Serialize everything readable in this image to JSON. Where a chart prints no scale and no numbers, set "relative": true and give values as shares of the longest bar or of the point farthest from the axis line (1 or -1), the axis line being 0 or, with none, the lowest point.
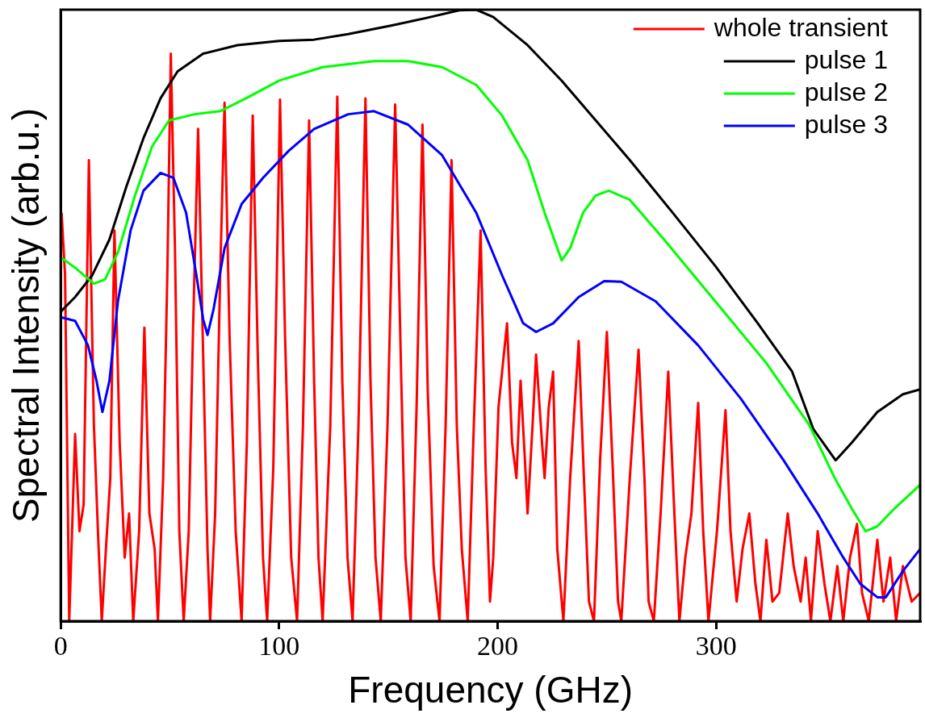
{
  "chart_data": {
    "type": "line",
    "xlabel": "Frequency (GHz)",
    "ylabel": "Spectral Intensity (arb.u.)",
    "relative": true,
    "xlim": [
      0,
      393.4
    ],
    "xticks": [
      0,
      100,
      200,
      300
    ],
    "legend": "top right",
    "grid": false,
    "series": [
      {
        "name": "whole transient",
        "color": "#ff0000",
        "x": [
          0.4,
          2.0,
          3.9,
          6.6,
          8.6,
          10.5,
          12.9,
          15.2,
          17.2,
          18.8,
          20.7,
          22.7,
          24.6,
          27,
          29.3,
          31.3,
          33.2,
          35.9,
          38.3,
          40.6,
          43,
          44.5,
          46.9,
          48.8,
          50.4,
          52.3,
          54.3,
          56.3,
          58.6,
          60.5,
          62.9,
          65.2,
          67.2,
          68.4,
          70.7,
          73,
          75,
          77.3,
          80.1,
          82.8,
          85.2,
          87.9,
          90.2,
          92.6,
          94.5,
          97.3,
          100.4,
          102.7,
          105.5,
          108.2,
          110.9,
          113.7,
          116,
          118,
          119.9,
          123.4,
          126.6,
          128.9,
          131.3,
          133.6,
          136.3,
          139.5,
          141.8,
          144.1,
          146.5,
          149.6,
          153.1,
          155.9,
          157.8,
          160.2,
          162.9,
          165.6,
          168,
          170.7,
          173.4,
          176.2,
          178.9,
          181.3,
          183.6,
          186.3,
          189.1,
          192.2,
          194.5,
          196.5,
          198,
          200.4,
          204.3,
          206.6,
          208.6,
          210.5,
          212.5,
          213.7,
          216,
          217.6,
          220.3,
          221.5,
          223.4,
          225.4,
          227.3,
          230.1,
          233.2,
          237.1,
          239.5,
          241.8,
          244.1,
          246.9,
          250,
          252.7,
          255.1,
          256.6,
          260.5,
          264.5,
          267.2,
          269.1,
          271.5,
          274.6,
          278.1,
          280.9,
          283.2,
          285.9,
          288.7,
          291.8,
          294.1,
          296.5,
          300.4,
          304.3,
          306.6,
          309.4,
          312.1,
          315.2,
          318,
          320.3,
          323,
          325.8,
          328.9,
          332.8,
          335.5,
          338.7,
          341,
          343.4,
          346.5,
          349.6,
          352.3,
          355.5,
          358.2,
          361.3,
          364.5,
          366.8,
          369.9,
          373.8,
          376.6,
          379.7,
          382.4,
          385.5,
          389.5,
          393.4
        ],
        "values": [
          0.668,
          0.566,
          0,
          0.306,
          0.147,
          0.191,
          0.754,
          0.321,
          0.133,
          0,
          0.118,
          0.234,
          0.639,
          0.292,
          0.104,
          0.176,
          0,
          0.147,
          0.48,
          0.176,
          0.118,
          0,
          0.234,
          0.566,
          0.928,
          0.61,
          0.147,
          0,
          0.147,
          0.465,
          0.805,
          0.436,
          0.118,
          0,
          0.176,
          0.566,
          0.848,
          0.465,
          0.147,
          0,
          0.292,
          0.827,
          0.436,
          0.104,
          0,
          0.249,
          0.853,
          0.465,
          0.104,
          0,
          0.321,
          0.819,
          0.393,
          0.104,
          0,
          0.321,
          0.858,
          0.393,
          0.104,
          0,
          0.321,
          0.855,
          0.393,
          0.104,
          0,
          0.321,
          0.845,
          0.393,
          0.104,
          0,
          0.35,
          0.812,
          0.379,
          0.09,
          0,
          0.321,
          0.754,
          0.321,
          0.118,
          0,
          0.321,
          0.639,
          0.249,
          0.032,
          0.104,
          0.35,
          0.487,
          0.292,
          0.234,
          0.393,
          0.263,
          0.176,
          0.321,
          0.436,
          0.292,
          0.234,
          0.35,
          0.408,
          0.118,
          0,
          0.234,
          0.458,
          0.234,
          0.032,
          0,
          0.263,
          0.473,
          0.249,
          0.032,
          0,
          0.234,
          0.444,
          0.234,
          0.032,
          0,
          0.176,
          0.408,
          0.176,
          0,
          0.104,
          0.176,
          0.357,
          0.147,
          0,
          0.147,
          0.345,
          0.147,
          0.032,
          0.118,
          0.176,
          0.061,
          0,
          0.133,
          0.032,
          0.046,
          0.176,
          0.09,
          0.032,
          0.104,
          0,
          0.147,
          0.061,
          0,
          0.09,
          0,
          0.104,
          0.159,
          0.046,
          0,
          0.133,
          0.032,
          0.104,
          0,
          0.09,
          0.032,
          0.046
        ]
      },
      {
        "name": "pulse 1",
        "color": "#000000",
        "x": [
          0,
          6.6,
          14.5,
          22.3,
          30.1,
          37.9,
          45.7,
          53.5,
          65.2,
          80.9,
          100,
          116,
          131.6,
          151.2,
          166.8,
          182.4,
          190.2,
          198,
          213.7,
          229.3,
          244.9,
          260.5,
          280.1,
          299.6,
          319.1,
          334.8,
          344.5,
          354.7,
          362.1,
          373.8,
          385.5,
          393.4
        ],
        "values": [
          0.506,
          0.53,
          0.566,
          0.624,
          0.711,
          0.79,
          0.855,
          0.899,
          0.928,
          0.942,
          0.949,
          0.951,
          0.96,
          0.974,
          0.986,
          0.999,
          1,
          0.988,
          0.942,
          0.884,
          0.819,
          0.754,
          0.668,
          0.581,
          0.487,
          0.408,
          0.314,
          0.263,
          0.292,
          0.342,
          0.371,
          0.379
        ]
      },
      {
        "name": "pulse 2",
        "color": "#00ff00",
        "x": [
          0,
          6.6,
          15.2,
          20.3,
          26.2,
          34,
          41.8,
          49.6,
          61.3,
          73,
          84.8,
          100,
          119.9,
          143.4,
          159,
          174.6,
          190.2,
          202,
          213.7,
          221.5,
          227.3,
          229.3,
          233.2,
          239.1,
          244.9,
          250.8,
          260.5,
          276.2,
          299.6,
          323,
          342.6,
          354.3,
          362.1,
          368.4,
          373.8,
          381.6,
          393.4
        ],
        "values": [
          0.595,
          0.578,
          0.552,
          0.559,
          0.603,
          0.696,
          0.776,
          0.819,
          0.829,
          0.834,
          0.855,
          0.884,
          0.906,
          0.916,
          0.916,
          0.906,
          0.877,
          0.827,
          0.754,
          0.668,
          0.61,
          0.59,
          0.61,
          0.668,
          0.696,
          0.704,
          0.689,
          0.624,
          0.523,
          0.422,
          0.321,
          0.234,
          0.184,
          0.147,
          0.155,
          0.184,
          0.223
        ]
      },
      {
        "name": "pulse 3",
        "color": "#0000ff",
        "x": [
          0,
          6.6,
          12.5,
          16.4,
          19.1,
          22.3,
          26.2,
          32,
          37.9,
          45.7,
          51.6,
          57.4,
          62.1,
          65.2,
          67.2,
          69.9,
          75,
          82.8,
          92.6,
          104.3,
          116,
          131.6,
          143.4,
          159,
          174.6,
          190.2,
          202,
          211.7,
          217.6,
          225.4,
          237.1,
          248.8,
          256.6,
          272.3,
          291.8,
          311.3,
          330.9,
          346.5,
          358.2,
          366,
          373.8,
          377.7,
          385.5,
          393.4
        ],
        "values": [
          0.497,
          0.491,
          0.451,
          0.393,
          0.342,
          0.393,
          0.523,
          0.639,
          0.704,
          0.733,
          0.725,
          0.668,
          0.566,
          0.494,
          0.468,
          0.509,
          0.61,
          0.682,
          0.725,
          0.769,
          0.805,
          0.829,
          0.834,
          0.812,
          0.762,
          0.668,
          0.566,
          0.487,
          0.473,
          0.487,
          0.53,
          0.556,
          0.555,
          0.523,
          0.451,
          0.364,
          0.263,
          0.176,
          0.104,
          0.061,
          0.039,
          0.039,
          0.082,
          0.118
        ]
      }
    ]
  }
}
